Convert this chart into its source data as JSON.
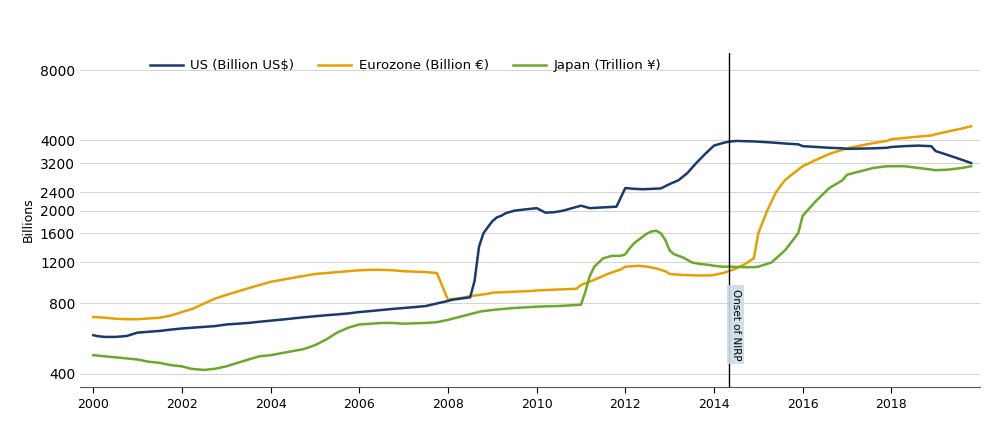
{
  "title": "",
  "ylabel": "Billions",
  "legend_entries": [
    "US (Billion US$)",
    "Eurozone (Billion €)",
    "Japan (Trillion ¥)"
  ],
  "colors": {
    "us": "#1a3a6e",
    "eurozone": "#e8a000",
    "japan": "#6aaa2a"
  },
  "nirp_x": 2014.33,
  "nirp_label": "Onset of NIRP",
  "yticks": [
    400,
    800,
    1200,
    1600,
    2000,
    2400,
    3200,
    4000,
    8000
  ],
  "ylim": [
    350,
    9500
  ],
  "xlim": [
    1999.7,
    2020.0
  ],
  "xticks": [
    2000,
    2002,
    2004,
    2006,
    2008,
    2010,
    2012,
    2014,
    2016,
    2018
  ],
  "background_color": "#ffffff",
  "grid_color": "#cccccc",
  "us_data": {
    "years": [
      2000.0,
      2000.08,
      2000.25,
      2000.5,
      2000.75,
      2001.0,
      2001.25,
      2001.5,
      2001.75,
      2002.0,
      2002.25,
      2002.5,
      2002.75,
      2003.0,
      2003.25,
      2003.5,
      2003.75,
      2004.0,
      2004.25,
      2004.5,
      2004.75,
      2005.0,
      2005.25,
      2005.5,
      2005.75,
      2006.0,
      2006.25,
      2006.5,
      2006.75,
      2007.0,
      2007.25,
      2007.5,
      2007.75,
      2008.0,
      2008.1,
      2008.2,
      2008.3,
      2008.4,
      2008.5,
      2008.6,
      2008.7,
      2008.8,
      2008.9,
      2009.0,
      2009.1,
      2009.2,
      2009.3,
      2009.5,
      2009.7,
      2010.0,
      2010.2,
      2010.4,
      2010.6,
      2010.8,
      2011.0,
      2011.2,
      2011.4,
      2011.6,
      2011.8,
      2012.0,
      2012.2,
      2012.4,
      2012.6,
      2012.8,
      2013.0,
      2013.2,
      2013.4,
      2013.6,
      2013.8,
      2014.0,
      2014.2,
      2014.33,
      2014.5,
      2014.7,
      2014.9,
      2015.0,
      2015.3,
      2015.6,
      2015.9,
      2016.0,
      2016.3,
      2016.6,
      2016.9,
      2017.0,
      2017.3,
      2017.6,
      2017.9,
      2018.0,
      2018.3,
      2018.6,
      2018.9,
      2019.0,
      2019.3,
      2019.6,
      2019.8
    ],
    "values": [
      585,
      580,
      575,
      575,
      580,
      600,
      605,
      610,
      618,
      625,
      630,
      635,
      640,
      650,
      655,
      660,
      668,
      675,
      682,
      690,
      698,
      705,
      712,
      718,
      725,
      735,
      742,
      750,
      758,
      765,
      772,
      780,
      800,
      820,
      830,
      835,
      840,
      845,
      850,
      1000,
      1400,
      1600,
      1700,
      1800,
      1870,
      1900,
      1950,
      2000,
      2020,
      2050,
      1960,
      1970,
      2000,
      2050,
      2100,
      2050,
      2060,
      2070,
      2080,
      2500,
      2480,
      2470,
      2480,
      2490,
      2600,
      2700,
      2900,
      3200,
      3500,
      3800,
      3900,
      3950,
      3980,
      3970,
      3960,
      3950,
      3920,
      3880,
      3850,
      3780,
      3750,
      3720,
      3700,
      3680,
      3690,
      3700,
      3720,
      3750,
      3780,
      3800,
      3780,
      3600,
      3450,
      3300,
      3200
    ]
  },
  "eurozone_data": {
    "years": [
      2000.0,
      2000.25,
      2000.5,
      2000.75,
      2001.0,
      2001.25,
      2001.5,
      2001.75,
      2002.0,
      2002.25,
      2002.5,
      2002.75,
      2003.0,
      2003.25,
      2003.5,
      2003.75,
      2004.0,
      2004.25,
      2004.5,
      2004.75,
      2005.0,
      2005.25,
      2005.5,
      2005.75,
      2006.0,
      2006.25,
      2006.5,
      2006.75,
      2007.0,
      2007.25,
      2007.5,
      2007.75,
      2008.0,
      2008.1,
      2008.2,
      2008.3,
      2008.5,
      2008.7,
      2008.9,
      2009.0,
      2009.3,
      2009.6,
      2009.9,
      2010.0,
      2010.3,
      2010.6,
      2010.9,
      2011.0,
      2011.3,
      2011.6,
      2011.9,
      2012.0,
      2012.3,
      2012.5,
      2012.7,
      2012.9,
      2013.0,
      2013.3,
      2013.6,
      2013.9,
      2014.0,
      2014.1,
      2014.2,
      2014.33,
      2014.5,
      2014.7,
      2014.9,
      2015.0,
      2015.2,
      2015.4,
      2015.6,
      2015.8,
      2016.0,
      2016.3,
      2016.6,
      2016.9,
      2017.0,
      2017.3,
      2017.6,
      2017.9,
      2018.0,
      2018.3,
      2018.6,
      2018.9,
      2019.0,
      2019.3,
      2019.6,
      2019.8
    ],
    "values": [
      700,
      695,
      688,
      685,
      685,
      690,
      695,
      710,
      735,
      760,
      800,
      840,
      870,
      900,
      930,
      960,
      990,
      1010,
      1030,
      1050,
      1070,
      1080,
      1090,
      1100,
      1110,
      1115,
      1115,
      1110,
      1100,
      1095,
      1090,
      1080,
      830,
      835,
      840,
      845,
      860,
      870,
      880,
      890,
      895,
      900,
      905,
      910,
      915,
      920,
      925,
      960,
      1010,
      1070,
      1120,
      1150,
      1160,
      1150,
      1130,
      1100,
      1070,
      1060,
      1055,
      1055,
      1060,
      1070,
      1080,
      1100,
      1130,
      1180,
      1250,
      1600,
      2000,
      2400,
      2700,
      2900,
      3100,
      3300,
      3500,
      3650,
      3700,
      3800,
      3900,
      3980,
      4050,
      4100,
      4150,
      4200,
      4250,
      4380,
      4500,
      4600
    ]
  },
  "japan_data": {
    "years": [
      2000.0,
      2000.25,
      2000.5,
      2000.75,
      2001.0,
      2001.25,
      2001.5,
      2001.75,
      2002.0,
      2002.1,
      2002.2,
      2002.3,
      2002.5,
      2002.75,
      2003.0,
      2003.25,
      2003.5,
      2003.75,
      2004.0,
      2004.25,
      2004.5,
      2004.75,
      2005.0,
      2005.25,
      2005.5,
      2005.75,
      2006.0,
      2006.25,
      2006.5,
      2006.75,
      2007.0,
      2007.25,
      2007.5,
      2007.75,
      2008.0,
      2008.25,
      2008.5,
      2008.75,
      2009.0,
      2009.25,
      2009.5,
      2009.75,
      2010.0,
      2010.25,
      2010.5,
      2010.75,
      2011.0,
      2011.1,
      2011.2,
      2011.3,
      2011.5,
      2011.7,
      2011.9,
      2012.0,
      2012.1,
      2012.2,
      2012.3,
      2012.4,
      2012.5,
      2012.6,
      2012.7,
      2012.8,
      2012.9,
      2013.0,
      2013.1,
      2013.2,
      2013.3,
      2013.5,
      2013.7,
      2013.9,
      2014.0,
      2014.1,
      2014.2,
      2014.33,
      2014.5,
      2014.7,
      2014.9,
      2015.0,
      2015.3,
      2015.6,
      2015.9,
      2016.0,
      2016.3,
      2016.6,
      2016.9,
      2017.0,
      2017.3,
      2017.6,
      2017.9,
      2018.0,
      2018.3,
      2018.6,
      2018.9,
      2019.0,
      2019.3,
      2019.6,
      2019.8
    ],
    "values": [
      480,
      475,
      470,
      465,
      460,
      450,
      445,
      435,
      430,
      425,
      420,
      418,
      415,
      420,
      430,
      445,
      460,
      475,
      480,
      490,
      500,
      510,
      530,
      560,
      600,
      630,
      650,
      655,
      660,
      660,
      655,
      658,
      660,
      665,
      680,
      700,
      720,
      740,
      750,
      758,
      765,
      770,
      775,
      778,
      780,
      785,
      790,
      900,
      1050,
      1150,
      1250,
      1280,
      1280,
      1300,
      1380,
      1450,
      1500,
      1550,
      1600,
      1630,
      1640,
      1600,
      1500,
      1350,
      1300,
      1280,
      1260,
      1200,
      1180,
      1170,
      1160,
      1155,
      1150,
      1150,
      1148,
      1145,
      1145,
      1150,
      1200,
      1350,
      1600,
      1900,
      2200,
      2500,
      2700,
      2850,
      2950,
      3050,
      3100,
      3100,
      3100,
      3050,
      3000,
      2980,
      3000,
      3050,
      3100
    ]
  }
}
